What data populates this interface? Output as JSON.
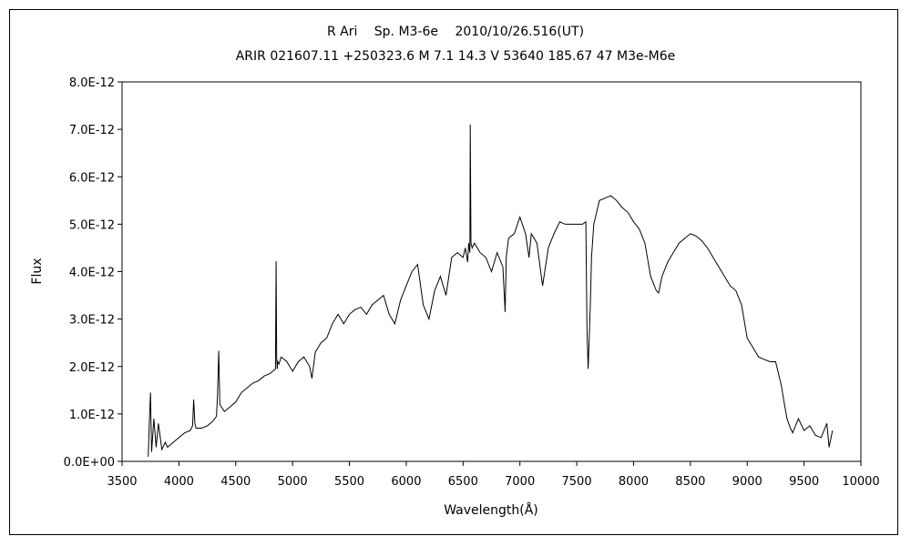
{
  "chart_data": {
    "type": "line",
    "title": "R Ari　 Sp. M3-6e　 2010/10/26.516(UT)",
    "subtitle": "ARIR 021607.11 +250323.6 M 7.1 14.3 V 53640 185.67 47 M3e-M6e",
    "xlabel": "Wavelength(Å)",
    "ylabel": "Flux",
    "xlim": [
      3500,
      10000
    ],
    "ylim": [
      0,
      8e-12
    ],
    "x_ticks": [
      3500,
      4000,
      4500,
      5000,
      5500,
      6000,
      6500,
      7000,
      7500,
      8000,
      8500,
      9000,
      9500,
      10000
    ],
    "x_tick_labels": [
      "3500",
      "4000",
      "4500",
      "5000",
      "5500",
      "6000",
      "6500",
      "7000",
      "7500",
      "8000",
      "8500",
      "9000",
      "9500",
      "10000"
    ],
    "y_ticks": [
      0,
      1e-12,
      2e-12,
      3e-12,
      4e-12,
      5e-12,
      6e-12,
      7e-12,
      8e-12
    ],
    "y_tick_labels": [
      "0.0E+00",
      "1.0E-12",
      "2.0E-12",
      "3.0E-12",
      "4.0E-12",
      "5.0E-12",
      "6.0E-12",
      "7.0E-12",
      "8.0E-12"
    ],
    "grid": false,
    "legend": "none",
    "line_color": "#000000",
    "series": [
      {
        "x": [
          3730,
          3740,
          3750,
          3760,
          3780,
          3800,
          3820,
          3850,
          3880,
          3900,
          3950,
          4000,
          4050,
          4100,
          4120,
          4130,
          4140,
          4150,
          4200,
          4250,
          4300,
          4330,
          4340,
          4350,
          4360,
          4400,
          4450,
          4500,
          4550,
          4600,
          4650,
          4700,
          4750,
          4800,
          4850,
          4855,
          4860,
          4865,
          4870,
          4880,
          4900,
          4950,
          5000,
          5050,
          5100,
          5150,
          5170,
          5200,
          5250,
          5300,
          5350,
          5400,
          5450,
          5500,
          5550,
          5600,
          5650,
          5700,
          5750,
          5800,
          5850,
          5900,
          5950,
          6000,
          6050,
          6100,
          6150,
          6200,
          6250,
          6300,
          6350,
          6400,
          6450,
          6500,
          6520,
          6540,
          6550,
          6560,
          6563,
          6570,
          6580,
          6600,
          6650,
          6700,
          6750,
          6800,
          6850,
          6870,
          6880,
          6900,
          6950,
          7000,
          7050,
          7080,
          7100,
          7150,
          7200,
          7250,
          7300,
          7350,
          7400,
          7450,
          7500,
          7550,
          7580,
          7590,
          7600,
          7610,
          7620,
          7630,
          7650,
          7680,
          7700,
          7750,
          7800,
          7850,
          7900,
          7950,
          8000,
          8050,
          8100,
          8150,
          8200,
          8220,
          8250,
          8300,
          8350,
          8400,
          8450,
          8500,
          8550,
          8600,
          8650,
          8700,
          8750,
          8800,
          8850,
          8900,
          8950,
          9000,
          9050,
          9100,
          9150,
          9200,
          9250,
          9300,
          9320,
          9350,
          9380,
          9400,
          9450,
          9500,
          9550,
          9600,
          9650,
          9700,
          9720,
          9750
        ],
        "y": [
          1e-13,
          8e-13,
          1.45e-12,
          2e-13,
          9e-13,
          3e-13,
          8e-13,
          2.5e-13,
          4e-13,
          3e-13,
          4e-13,
          5e-13,
          6e-13,
          6.5e-13,
          7.5e-13,
          1.3e-12,
          8e-13,
          7e-13,
          7e-13,
          7.5e-13,
          8.5e-13,
          9.5e-13,
          1.4e-12,
          2.33e-12,
          1.2e-12,
          1.05e-12,
          1.15e-12,
          1.25e-12,
          1.45e-12,
          1.55e-12,
          1.65e-12,
          1.7e-12,
          1.8e-12,
          1.85e-12,
          1.95e-12,
          4.22e-12,
          2.2e-12,
          1.95e-12,
          2.1e-12,
          2.05e-12,
          2.2e-12,
          2.1e-12,
          1.9e-12,
          2.1e-12,
          2.2e-12,
          2e-12,
          1.75e-12,
          2.3e-12,
          2.5e-12,
          2.6e-12,
          2.9e-12,
          3.1e-12,
          2.9e-12,
          3.1e-12,
          3.2e-12,
          3.25e-12,
          3.1e-12,
          3.3e-12,
          3.4e-12,
          3.5e-12,
          3.1e-12,
          2.9e-12,
          3.4e-12,
          3.7e-12,
          4e-12,
          4.15e-12,
          3.3e-12,
          3e-12,
          3.6e-12,
          3.9e-12,
          3.5e-12,
          4.3e-12,
          4.4e-12,
          4.3e-12,
          4.5e-12,
          4.2e-12,
          4.6e-12,
          4.4e-12,
          7.1e-12,
          4.6e-12,
          4.5e-12,
          4.6e-12,
          4.4e-12,
          4.3e-12,
          4e-12,
          4.4e-12,
          4.1e-12,
          3.15e-12,
          4.3e-12,
          4.7e-12,
          4.8e-12,
          5.15e-12,
          4.8e-12,
          4.3e-12,
          4.8e-12,
          4.6e-12,
          3.7e-12,
          4.5e-12,
          4.8e-12,
          5.05e-12,
          5e-12,
          5e-12,
          5e-12,
          5e-12,
          5.05e-12,
          2.8e-12,
          1.95e-12,
          2.6e-12,
          3.3e-12,
          4.3e-12,
          5e-12,
          5.3e-12,
          5.5e-12,
          5.55e-12,
          5.6e-12,
          5.5e-12,
          5.35e-12,
          5.25e-12,
          5.05e-12,
          4.9e-12,
          4.6e-12,
          3.9e-12,
          3.6e-12,
          3.55e-12,
          3.9e-12,
          4.2e-12,
          4.4e-12,
          4.6e-12,
          4.7e-12,
          4.8e-12,
          4.75e-12,
          4.65e-12,
          4.5e-12,
          4.3e-12,
          4.1e-12,
          3.9e-12,
          3.7e-12,
          3.6e-12,
          3.3e-12,
          2.6e-12,
          2.4e-12,
          2.2e-12,
          2.15e-12,
          2.1e-12,
          2.1e-12,
          1.6e-12,
          1.3e-12,
          9e-13,
          7e-13,
          6e-13,
          9e-13,
          6.5e-13,
          7.5e-13,
          5.5e-13,
          5e-13,
          8e-13,
          3e-13,
          6.5e-13
        ]
      }
    ]
  }
}
